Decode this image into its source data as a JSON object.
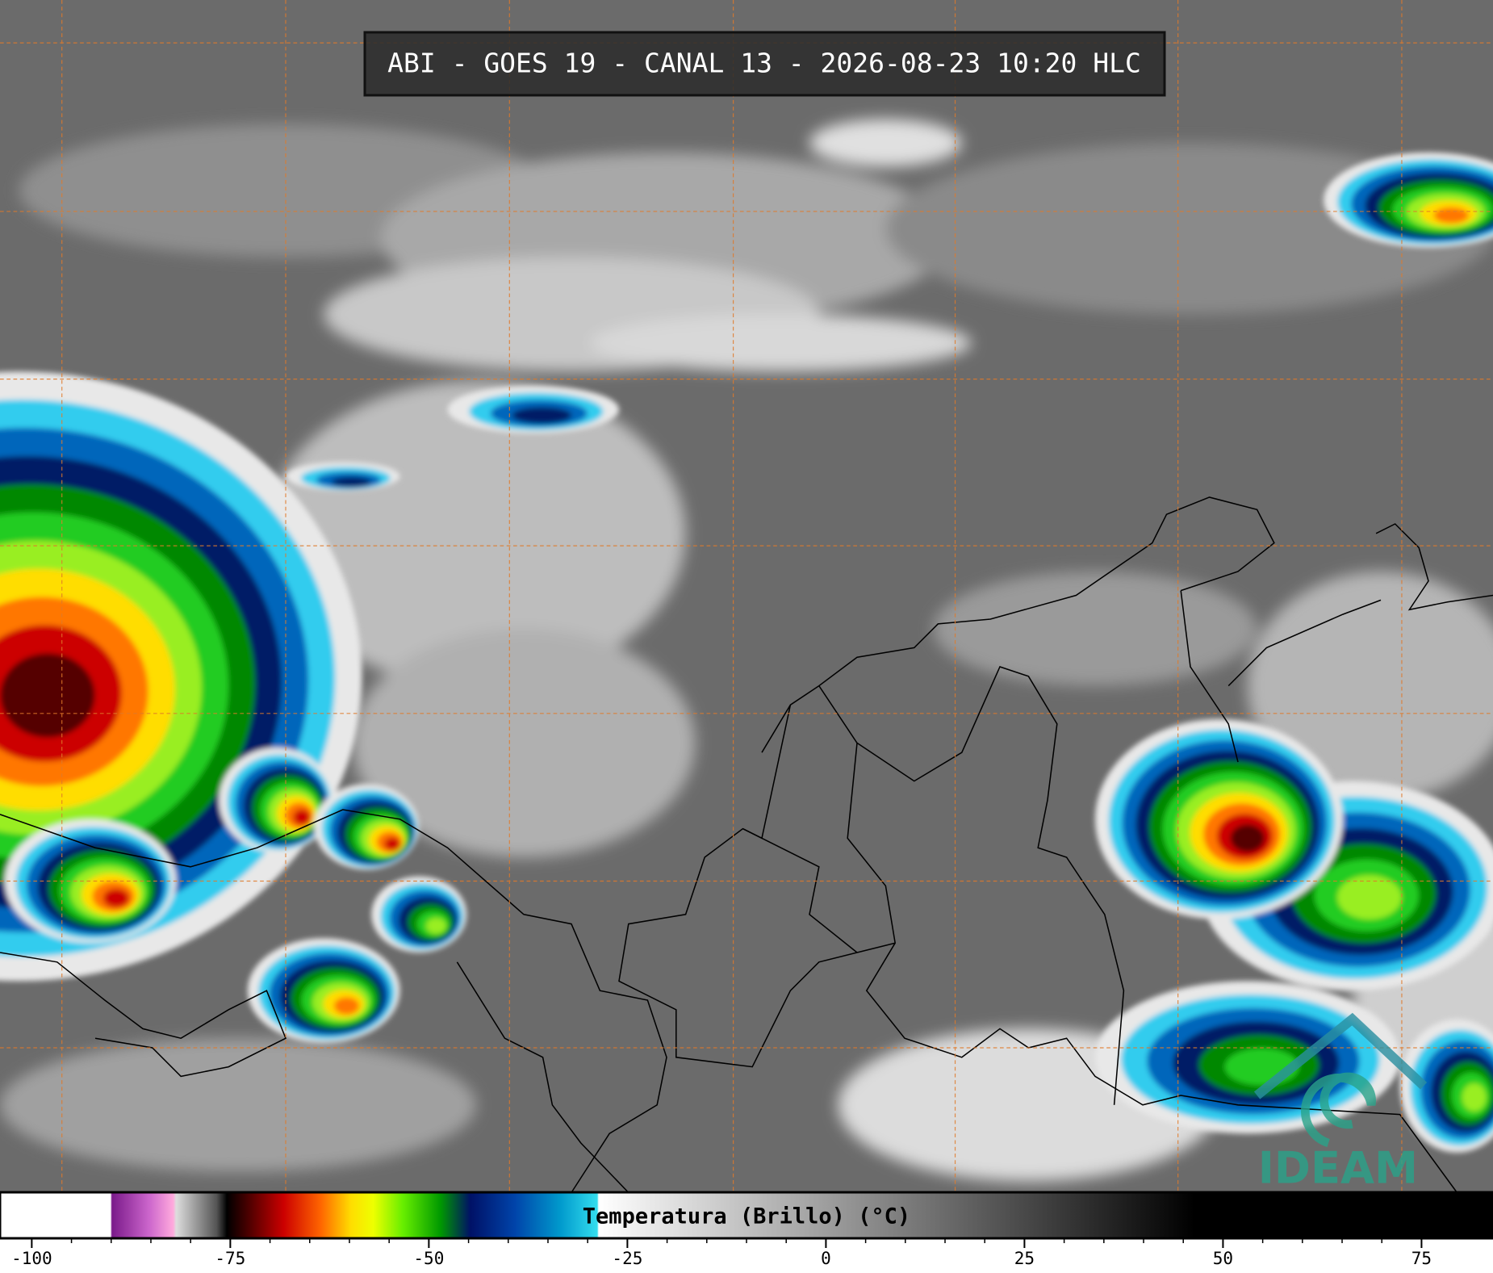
{
  "header": {
    "title": "ABI - GOES 19 - CANAL 13 - 2026-08-23 10:20 HLC"
  },
  "colorbar": {
    "label": "Temperatura (Brillo) (°C)",
    "xlim": [
      -104,
      84
    ],
    "xticks": [
      -100,
      -75,
      -50,
      -25,
      0,
      25,
      50,
      75
    ]
  },
  "logo": {
    "text": "IDEAM"
  }
}
